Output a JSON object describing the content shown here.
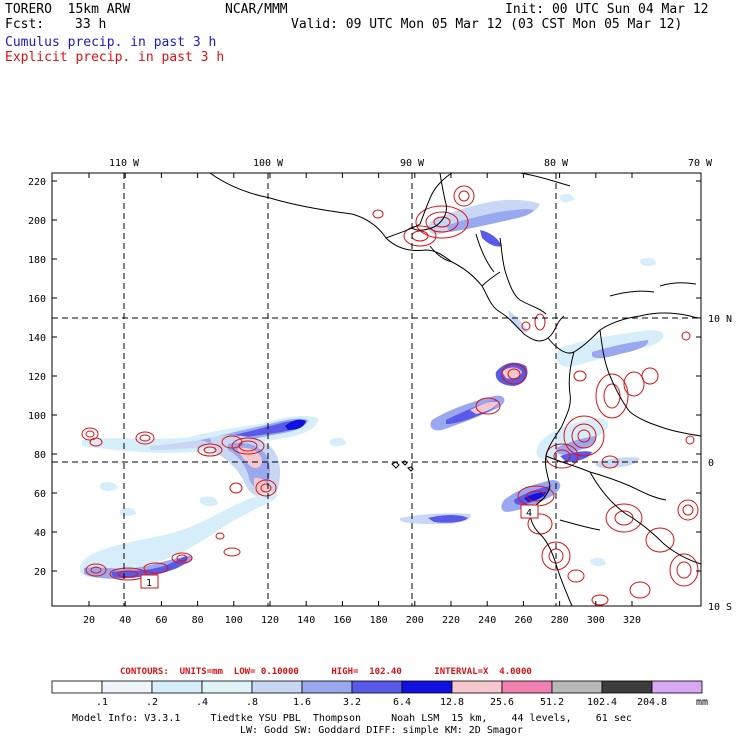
{
  "header": {
    "model": "TORERO  15km ARW",
    "org": "NCAR/MMM",
    "init": "Init: 00 UTC Sun 04 Mar 12",
    "fcst_label": "Fcst:",
    "fcst_value": "33 h",
    "valid": "Valid: 09 UTC Mon 05 Mar 12 (03 CST Mon 05 Mar 12)",
    "line_cumulus": "Cumulus precip. in past 3 h",
    "line_explicit": "Explicit precip. in past 3 h"
  },
  "map": {
    "lon_labels": [
      "110 W",
      "100 W",
      "90 W",
      "80 W",
      "70 W"
    ],
    "lat_labels": [
      "10 N",
      "0",
      "10 S"
    ],
    "y_ticks": [
      "220",
      "200",
      "180",
      "160",
      "140",
      "120",
      "100",
      "80",
      "60",
      "40",
      "20"
    ],
    "x_ticks": [
      "20",
      "40",
      "60",
      "80",
      "100",
      "120",
      "140",
      "160",
      "180",
      "200",
      "220",
      "240",
      "260",
      "280",
      "300",
      "320"
    ],
    "box_labels": [
      "1",
      "4"
    ]
  },
  "contours": {
    "text": "CONTOURS:  UNITS=mm  LOW= 0.10000      HIGH=  102.40      INTERVAL=X  4.0000"
  },
  "colorbar": {
    "labels": [
      ".1",
      ".2",
      ".4",
      ".8",
      "1.6",
      "3.2",
      "6.4",
      "12.8",
      "25.6",
      "51.2",
      "102.4",
      "204.8"
    ],
    "units": "mm",
    "colors": [
      "#ffffff",
      "#eef6fc",
      "#d6eefa",
      "#e0f4f8",
      "#c8d8f4",
      "#9aa8f0",
      "#5a5ae8",
      "#1010e0",
      "#f4c8cc",
      "#f080b0",
      "#b8b8b8",
      "#3c3c3c",
      "#d8a8f4"
    ]
  },
  "model_info": {
    "line1": "Model Info: V3.3.1     Tiedtke YSU PBL  Thompson     Noah LSM  15 km,    44 levels,    61 sec",
    "line2": "LW: Godd SW: Goddard DIFF: simple KM: 2D Smagor"
  }
}
